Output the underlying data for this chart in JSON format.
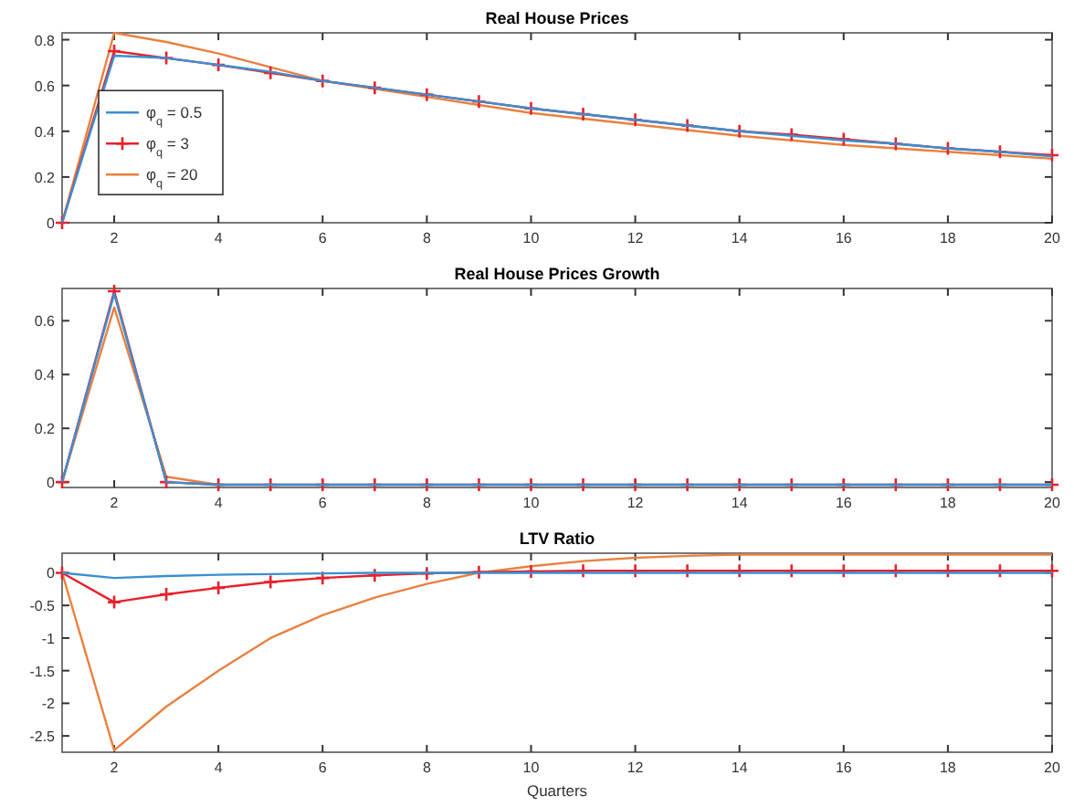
{
  "chart_data": [
    {
      "type": "line",
      "title": "Real House Prices",
      "x": [
        1,
        2,
        3,
        4,
        5,
        6,
        7,
        8,
        9,
        10,
        11,
        12,
        13,
        14,
        15,
        16,
        17,
        18,
        19,
        20
      ],
      "xlim": [
        1,
        20
      ],
      "xticks": [
        2,
        4,
        6,
        8,
        10,
        12,
        14,
        16,
        18,
        20
      ],
      "ylim": [
        0,
        0.83
      ],
      "yticks": [
        0,
        0.2,
        0.4,
        0.6,
        0.8
      ],
      "legend": "left",
      "grid": false,
      "series": [
        {
          "name": "φ$_{q}$ = 0.5",
          "color": "#3b8fd0",
          "marker": "none",
          "values": [
            0,
            0.73,
            0.72,
            0.69,
            0.66,
            0.62,
            0.59,
            0.56,
            0.53,
            0.5,
            0.475,
            0.45,
            0.425,
            0.4,
            0.38,
            0.36,
            0.345,
            0.325,
            0.31,
            0.29
          ]
        },
        {
          "name": "φ$_{q}$ = 3",
          "color": "#e8202a",
          "marker": "cross",
          "values": [
            0,
            0.75,
            0.72,
            0.69,
            0.655,
            0.62,
            0.59,
            0.56,
            0.53,
            0.5,
            0.475,
            0.45,
            0.425,
            0.4,
            0.385,
            0.365,
            0.345,
            0.325,
            0.31,
            0.295
          ]
        },
        {
          "name": "φ$_{q}$ = 20",
          "color": "#ea8040",
          "marker": "none",
          "values": [
            0,
            0.83,
            0.79,
            0.74,
            0.68,
            0.62,
            0.585,
            0.55,
            0.515,
            0.48,
            0.455,
            0.43,
            0.405,
            0.38,
            0.36,
            0.34,
            0.325,
            0.31,
            0.295,
            0.28
          ]
        }
      ]
    },
    {
      "type": "line",
      "title": "Real House Prices Growth",
      "x": [
        1,
        2,
        3,
        4,
        5,
        6,
        7,
        8,
        9,
        10,
        11,
        12,
        13,
        14,
        15,
        16,
        17,
        18,
        19,
        20
      ],
      "xlim": [
        1,
        20
      ],
      "xticks": [
        2,
        4,
        6,
        8,
        10,
        12,
        14,
        16,
        18,
        20
      ],
      "ylim": [
        -0.02,
        0.72
      ],
      "yticks": [
        0,
        0.2,
        0.4,
        0.6
      ],
      "legend": false,
      "grid": false,
      "series": [
        {
          "color": "#3b8fd0",
          "marker": "none",
          "values": [
            0,
            0.7,
            0,
            -0.01,
            -0.01,
            -0.01,
            -0.01,
            -0.01,
            -0.01,
            -0.01,
            -0.01,
            -0.01,
            -0.01,
            -0.01,
            -0.01,
            -0.01,
            -0.01,
            -0.01,
            -0.01,
            -0.01
          ]
        },
        {
          "color": "#e8202a",
          "marker": "cross",
          "values": [
            0,
            0.71,
            0,
            -0.01,
            -0.01,
            -0.01,
            -0.01,
            -0.01,
            -0.01,
            -0.01,
            -0.01,
            -0.01,
            -0.01,
            -0.01,
            -0.01,
            -0.01,
            -0.01,
            -0.01,
            -0.01,
            -0.01
          ]
        },
        {
          "color": "#ea8040",
          "marker": "none",
          "values": [
            0,
            0.65,
            0.02,
            -0.01,
            null,
            null,
            null,
            null,
            null,
            null,
            null,
            null,
            null,
            null,
            null,
            null,
            null,
            null,
            null,
            null
          ]
        }
      ]
    },
    {
      "type": "line",
      "title": "LTV Ratio",
      "xlabel": "Quarters",
      "x": [
        1,
        2,
        3,
        4,
        5,
        6,
        7,
        8,
        9,
        10,
        11,
        12,
        13,
        14,
        15,
        16,
        17,
        18,
        19,
        20
      ],
      "xlim": [
        1,
        20
      ],
      "xticks": [
        2,
        4,
        6,
        8,
        10,
        12,
        14,
        16,
        18,
        20
      ],
      "ylim": [
        -2.75,
        0.3
      ],
      "yticks": [
        -2.5,
        -2,
        -1.5,
        -1,
        -0.5,
        0
      ],
      "legend": false,
      "grid": false,
      "series": [
        {
          "color": "#3b8fd0",
          "marker": "none",
          "values": [
            0,
            -0.08,
            -0.05,
            -0.03,
            -0.02,
            -0.01,
            0,
            0,
            0,
            0,
            0,
            0,
            0,
            0,
            0,
            0,
            0,
            0,
            0,
            0
          ]
        },
        {
          "color": "#e8202a",
          "marker": "cross",
          "values": [
            0,
            -0.45,
            -0.33,
            -0.23,
            -0.14,
            -0.08,
            -0.04,
            -0.01,
            0.01,
            0.02,
            0.03,
            0.03,
            0.03,
            0.03,
            0.03,
            0.03,
            0.03,
            0.03,
            0.03,
            0.03
          ]
        },
        {
          "color": "#ea8040",
          "marker": "none",
          "values": [
            0,
            -2.72,
            -2.05,
            -1.5,
            -1,
            -0.65,
            -0.38,
            -0.17,
            0,
            0.1,
            0.18,
            0.23,
            0.26,
            0.28,
            0.28,
            0.28,
            0.28,
            0.28,
            0.28,
            0.28
          ]
        }
      ]
    }
  ]
}
